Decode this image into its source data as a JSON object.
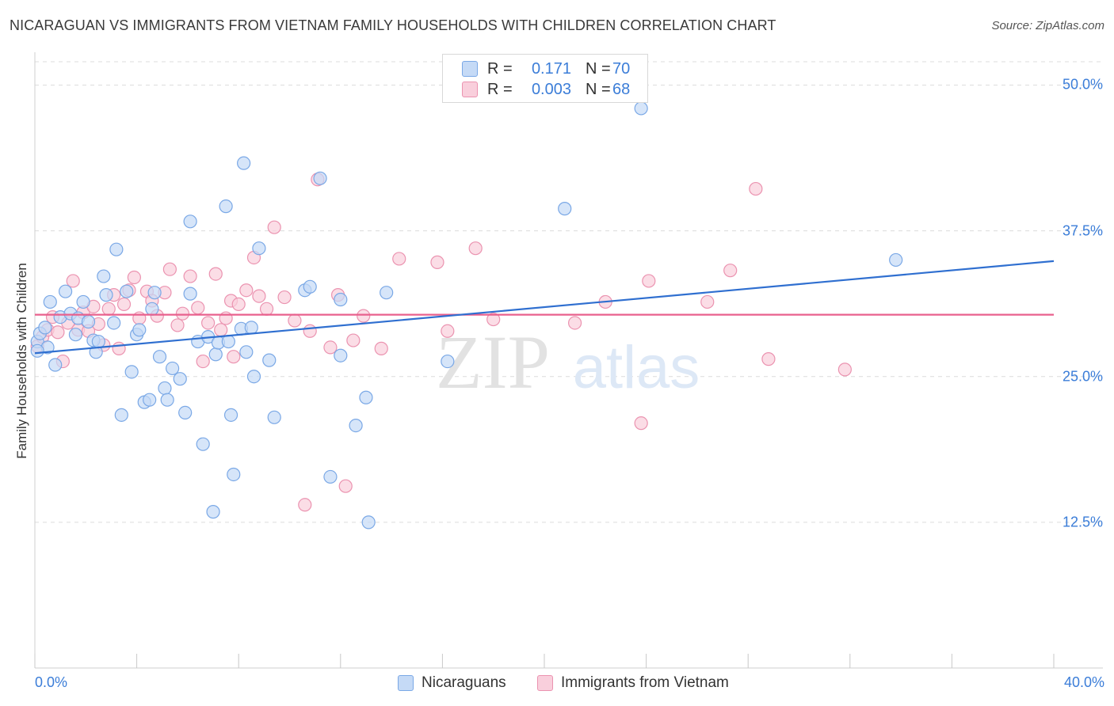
{
  "header": {
    "title": "NICARAGUAN VS IMMIGRANTS FROM VIETNAM FAMILY HOUSEHOLDS WITH CHILDREN CORRELATION CHART",
    "source": "Source: ZipAtlas.com"
  },
  "watermark": {
    "zip": "ZIP",
    "atlas": "atlas"
  },
  "legend": {
    "rows": [
      {
        "r_label": "R =",
        "r_value": "0.171",
        "n_label": "N =",
        "n_value": "70"
      },
      {
        "r_label": "R =",
        "r_value": "0.003",
        "n_label": "N =",
        "n_value": "68"
      }
    ]
  },
  "bottom_legend": {
    "series1": "Nicaraguans",
    "series2": "Immigrants from Vietnam"
  },
  "colors": {
    "blue_fill": "#c5daf6",
    "blue_stroke": "#7aa8e6",
    "blue_line": "#2f6fd0",
    "pink_fill": "#f9cfdc",
    "pink_stroke": "#eb93b0",
    "pink_line": "#e8608d",
    "tick_text": "#3b7dd8"
  },
  "chart_data": {
    "type": "scatter",
    "title": "NICARAGUAN VS IMMIGRANTS FROM VIETNAM FAMILY HOUSEHOLDS WITH CHILDREN CORRELATION CHART",
    "xlabel": "",
    "ylabel": "Family Households with Children",
    "xlim": [
      0,
      40
    ],
    "ylim": [
      0,
      52
    ],
    "x_tick_labels": [
      "0.0%",
      "40.0%"
    ],
    "y_ticks": [
      12.5,
      25.0,
      37.5,
      50.0
    ],
    "y_tick_labels": [
      "12.5%",
      "25.0%",
      "37.5%",
      "50.0%"
    ],
    "grid": true,
    "series": [
      {
        "name": "Nicaraguans",
        "r": 0.171,
        "n": 70,
        "trend": {
          "x": [
            0,
            40
          ],
          "y": [
            27.0,
            34.9
          ]
        },
        "points": [
          [
            0.1,
            28.0
          ],
          [
            0.2,
            28.7
          ],
          [
            0.4,
            29.2
          ],
          [
            0.5,
            27.5
          ],
          [
            0.6,
            31.4
          ],
          [
            0.8,
            26.0
          ],
          [
            1.0,
            30.1
          ],
          [
            1.2,
            32.3
          ],
          [
            1.4,
            30.4
          ],
          [
            1.6,
            28.6
          ],
          [
            1.7,
            30.0
          ],
          [
            1.9,
            31.4
          ],
          [
            2.1,
            29.7
          ],
          [
            2.3,
            28.1
          ],
          [
            2.4,
            27.1
          ],
          [
            2.5,
            28.0
          ],
          [
            2.7,
            33.6
          ],
          [
            2.8,
            32.0
          ],
          [
            3.1,
            29.6
          ],
          [
            3.2,
            35.9
          ],
          [
            3.4,
            21.7
          ],
          [
            3.6,
            32.3
          ],
          [
            3.8,
            25.4
          ],
          [
            4.0,
            28.6
          ],
          [
            4.1,
            29.0
          ],
          [
            4.3,
            22.8
          ],
          [
            4.5,
            23.0
          ],
          [
            4.6,
            30.8
          ],
          [
            4.7,
            32.2
          ],
          [
            4.9,
            26.7
          ],
          [
            5.1,
            24.0
          ],
          [
            5.2,
            23.0
          ],
          [
            5.4,
            25.7
          ],
          [
            5.7,
            24.8
          ],
          [
            5.9,
            21.9
          ],
          [
            6.1,
            38.3
          ],
          [
            6.1,
            32.1
          ],
          [
            6.4,
            28.0
          ],
          [
            6.6,
            19.2
          ],
          [
            6.8,
            28.4
          ],
          [
            7.0,
            13.4
          ],
          [
            7.1,
            26.9
          ],
          [
            7.2,
            27.9
          ],
          [
            7.5,
            39.6
          ],
          [
            7.6,
            28.0
          ],
          [
            7.7,
            21.7
          ],
          [
            7.8,
            16.6
          ],
          [
            8.1,
            29.1
          ],
          [
            8.2,
            43.3
          ],
          [
            8.3,
            27.1
          ],
          [
            8.5,
            29.2
          ],
          [
            8.6,
            25.0
          ],
          [
            8.8,
            36.0
          ],
          [
            9.2,
            26.4
          ],
          [
            9.4,
            21.5
          ],
          [
            10.6,
            32.4
          ],
          [
            10.8,
            32.7
          ],
          [
            11.2,
            42.0
          ],
          [
            11.6,
            16.4
          ],
          [
            12.0,
            31.6
          ],
          [
            12.0,
            26.8
          ],
          [
            12.6,
            20.8
          ],
          [
            13.0,
            23.2
          ],
          [
            13.1,
            12.5
          ],
          [
            13.8,
            32.2
          ],
          [
            16.2,
            26.3
          ],
          [
            20.8,
            39.4
          ],
          [
            23.8,
            48.0
          ],
          [
            33.8,
            35.0
          ],
          [
            0.1,
            27.2
          ]
        ]
      },
      {
        "name": "Immigrants from Vietnam",
        "r": 0.003,
        "n": 68,
        "trend": {
          "x": [
            0,
            40
          ],
          "y": [
            30.3,
            30.3
          ]
        },
        "points": [
          [
            0.1,
            27.6
          ],
          [
            0.3,
            28.4
          ],
          [
            0.5,
            29.0
          ],
          [
            0.7,
            30.1
          ],
          [
            0.9,
            28.8
          ],
          [
            1.1,
            26.3
          ],
          [
            1.3,
            29.6
          ],
          [
            1.5,
            33.2
          ],
          [
            1.7,
            29.0
          ],
          [
            1.9,
            30.5
          ],
          [
            2.1,
            28.9
          ],
          [
            2.3,
            31.0
          ],
          [
            2.5,
            29.5
          ],
          [
            2.7,
            27.7
          ],
          [
            2.9,
            30.8
          ],
          [
            3.1,
            32.0
          ],
          [
            3.3,
            27.4
          ],
          [
            3.5,
            31.2
          ],
          [
            3.7,
            32.4
          ],
          [
            3.9,
            33.5
          ],
          [
            4.1,
            30.0
          ],
          [
            4.4,
            32.3
          ],
          [
            4.6,
            31.5
          ],
          [
            4.8,
            30.2
          ],
          [
            5.1,
            32.2
          ],
          [
            5.3,
            34.2
          ],
          [
            5.6,
            29.4
          ],
          [
            5.8,
            30.4
          ],
          [
            6.1,
            33.6
          ],
          [
            6.4,
            30.9
          ],
          [
            6.6,
            26.3
          ],
          [
            6.8,
            29.6
          ],
          [
            7.1,
            33.8
          ],
          [
            7.3,
            29.0
          ],
          [
            7.5,
            30.0
          ],
          [
            7.7,
            31.5
          ],
          [
            7.8,
            26.7
          ],
          [
            8.0,
            31.2
          ],
          [
            8.3,
            32.4
          ],
          [
            8.6,
            35.2
          ],
          [
            8.8,
            31.9
          ],
          [
            9.1,
            30.8
          ],
          [
            9.4,
            37.8
          ],
          [
            9.8,
            31.8
          ],
          [
            10.2,
            29.8
          ],
          [
            10.6,
            14.0
          ],
          [
            10.8,
            28.9
          ],
          [
            11.1,
            41.9
          ],
          [
            11.6,
            27.5
          ],
          [
            11.9,
            32.0
          ],
          [
            12.2,
            15.6
          ],
          [
            12.5,
            28.1
          ],
          [
            12.9,
            30.2
          ],
          [
            13.6,
            27.4
          ],
          [
            14.3,
            35.1
          ],
          [
            15.8,
            34.8
          ],
          [
            16.2,
            28.9
          ],
          [
            17.3,
            36.0
          ],
          [
            18.0,
            29.9
          ],
          [
            21.2,
            29.6
          ],
          [
            22.4,
            31.4
          ],
          [
            23.8,
            21.0
          ],
          [
            24.1,
            33.2
          ],
          [
            26.4,
            31.4
          ],
          [
            27.3,
            34.1
          ],
          [
            28.3,
            41.1
          ],
          [
            28.8,
            26.5
          ],
          [
            31.8,
            25.6
          ]
        ]
      }
    ]
  }
}
